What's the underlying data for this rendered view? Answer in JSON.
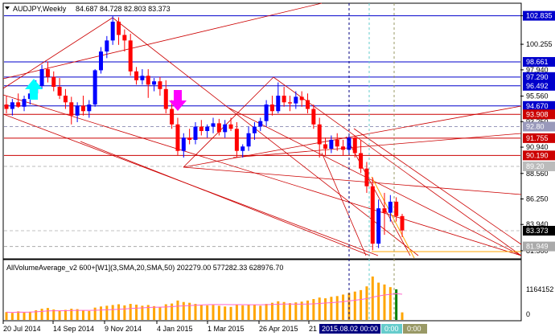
{
  "header": {
    "symbol_timeframe": "AUDJPY,Weekly",
    "ohlc": "84.687 84.728 82.803 83.373"
  },
  "indicator": {
    "label": "AllVolumeAverage_v2 600+[W1](3,SMA,20,SMA,50) 202279.00 577282.33 628976.70"
  },
  "time_axis": {
    "labels": [
      "20 Jul 2014",
      "14 Sep 2014",
      "9 Nov 2014",
      "4 Jan 2015",
      "1 Mar 2015",
      "26 Apr 2015",
      "21"
    ],
    "cursor_label": "2015.08.02 00:00",
    "cursor_label_2": "0:00",
    "cursor_label_3": "0:00"
  },
  "price_axis": {
    "ticks": [
      "102.835",
      "100.255",
      "97.940",
      "95.560",
      "93.250",
      "90.940",
      "88.560",
      "86.250",
      "83.940",
      "81.560"
    ],
    "highlights": [
      {
        "label": "102.835",
        "color": "#0000cc"
      },
      {
        "label": "98.661",
        "color": "#0000cc"
      },
      {
        "label": "97.290",
        "color": "#0000cc"
      },
      {
        "label": "96.492",
        "color": "#0000cc"
      },
      {
        "label": "94.670",
        "color": "#0000cc"
      },
      {
        "label": "93.908",
        "color": "#cc0000"
      },
      {
        "label": "92.80",
        "color": "#9999bb"
      },
      {
        "label": "91.755",
        "color": "#cc0000"
      },
      {
        "label": "90.190",
        "color": "#cc0000"
      },
      {
        "label": "89.20",
        "color": "#bbbbbb"
      },
      {
        "label": "83.373",
        "color": "#000000"
      },
      {
        "label": "81.949",
        "color": "#aaaaaa"
      }
    ]
  },
  "volume_axis": {
    "ticks": [
      "1164152",
      "0"
    ]
  },
  "colors": {
    "bull": "#0000ff",
    "bear": "#ff0000",
    "trendline": "#cc0000",
    "level_blue": "#0000cc",
    "level_red": "#cc0000",
    "arrow_up": "#00ffff",
    "arrow_down": "#ff00ff",
    "volume_bar": "#ffa500"
  },
  "chart_data": {
    "type": "candlestick",
    "price_range": [
      80.9,
      103.9
    ],
    "candles": [
      {
        "o": 94.8,
        "h": 95.6,
        "l": 94.0,
        "c": 94.4
      },
      {
        "o": 94.4,
        "h": 95.3,
        "l": 93.8,
        "c": 95.0
      },
      {
        "o": 95.0,
        "h": 95.8,
        "l": 94.5,
        "c": 94.6
      },
      {
        "o": 94.6,
        "h": 95.6,
        "l": 94.2,
        "c": 95.3
      },
      {
        "o": 95.3,
        "h": 96.6,
        "l": 94.8,
        "c": 95.8
      },
      {
        "o": 95.8,
        "h": 97.0,
        "l": 95.4,
        "c": 96.5
      },
      {
        "o": 96.5,
        "h": 98.4,
        "l": 96.2,
        "c": 98.0
      },
      {
        "o": 98.0,
        "h": 98.7,
        "l": 96.8,
        "c": 97.3
      },
      {
        "o": 97.3,
        "h": 97.8,
        "l": 96.0,
        "c": 96.4
      },
      {
        "o": 96.4,
        "h": 97.2,
        "l": 95.3,
        "c": 95.6
      },
      {
        "o": 95.6,
        "h": 96.2,
        "l": 94.4,
        "c": 95.0
      },
      {
        "o": 95.0,
        "h": 95.5,
        "l": 93.0,
        "c": 93.8
      },
      {
        "o": 93.8,
        "h": 95.0,
        "l": 93.2,
        "c": 94.7
      },
      {
        "o": 94.7,
        "h": 95.6,
        "l": 93.8,
        "c": 94.2
      },
      {
        "o": 94.2,
        "h": 95.2,
        "l": 93.6,
        "c": 94.8
      },
      {
        "o": 94.8,
        "h": 98.0,
        "l": 94.6,
        "c": 97.9
      },
      {
        "o": 97.9,
        "h": 100.0,
        "l": 97.6,
        "c": 99.6
      },
      {
        "o": 99.6,
        "h": 101.0,
        "l": 99.0,
        "c": 100.6
      },
      {
        "o": 100.6,
        "h": 102.8,
        "l": 100.2,
        "c": 102.3
      },
      {
        "o": 102.3,
        "h": 102.7,
        "l": 100.2,
        "c": 101.1
      },
      {
        "o": 101.1,
        "h": 101.6,
        "l": 99.6,
        "c": 100.6
      },
      {
        "o": 100.6,
        "h": 101.2,
        "l": 97.4,
        "c": 97.8
      },
      {
        "o": 97.8,
        "h": 98.2,
        "l": 96.6,
        "c": 97.0
      },
      {
        "o": 97.0,
        "h": 98.0,
        "l": 96.6,
        "c": 97.4
      },
      {
        "o": 97.4,
        "h": 98.0,
        "l": 95.4,
        "c": 96.6
      },
      {
        "o": 96.6,
        "h": 97.2,
        "l": 96.0,
        "c": 96.9
      },
      {
        "o": 96.9,
        "h": 97.3,
        "l": 95.6,
        "c": 96.2
      },
      {
        "o": 96.2,
        "h": 97.0,
        "l": 94.0,
        "c": 94.4
      },
      {
        "o": 94.4,
        "h": 95.2,
        "l": 92.6,
        "c": 93.0
      },
      {
        "o": 93.0,
        "h": 93.6,
        "l": 90.2,
        "c": 90.6
      },
      {
        "o": 90.6,
        "h": 92.2,
        "l": 90.0,
        "c": 91.8
      },
      {
        "o": 91.8,
        "h": 92.6,
        "l": 91.2,
        "c": 91.6
      },
      {
        "o": 91.6,
        "h": 93.2,
        "l": 91.2,
        "c": 92.8
      },
      {
        "o": 92.8,
        "h": 93.4,
        "l": 92.0,
        "c": 92.4
      },
      {
        "o": 92.4,
        "h": 93.0,
        "l": 91.8,
        "c": 92.8
      },
      {
        "o": 92.8,
        "h": 93.6,
        "l": 92.2,
        "c": 93.1
      },
      {
        "o": 93.1,
        "h": 93.5,
        "l": 92.0,
        "c": 92.3
      },
      {
        "o": 92.3,
        "h": 93.4,
        "l": 91.8,
        "c": 93.0
      },
      {
        "o": 93.0,
        "h": 93.6,
        "l": 92.4,
        "c": 92.6
      },
      {
        "o": 92.6,
        "h": 93.2,
        "l": 90.0,
        "c": 90.6
      },
      {
        "o": 90.6,
        "h": 91.2,
        "l": 90.0,
        "c": 91.0
      },
      {
        "o": 91.0,
        "h": 92.8,
        "l": 90.6,
        "c": 92.2
      },
      {
        "o": 92.2,
        "h": 93.2,
        "l": 91.6,
        "c": 92.8
      },
      {
        "o": 92.8,
        "h": 93.6,
        "l": 92.4,
        "c": 93.3
      },
      {
        "o": 93.3,
        "h": 95.2,
        "l": 92.8,
        "c": 94.8
      },
      {
        "o": 94.8,
        "h": 95.6,
        "l": 93.8,
        "c": 94.2
      },
      {
        "o": 94.2,
        "h": 96.8,
        "l": 94.0,
        "c": 95.6
      },
      {
        "o": 95.6,
        "h": 96.4,
        "l": 94.6,
        "c": 95.0
      },
      {
        "o": 95.0,
        "h": 95.6,
        "l": 94.2,
        "c": 94.9
      },
      {
        "o": 94.9,
        "h": 96.0,
        "l": 94.4,
        "c": 95.5
      },
      {
        "o": 95.5,
        "h": 96.0,
        "l": 94.6,
        "c": 95.2
      },
      {
        "o": 95.2,
        "h": 95.8,
        "l": 94.0,
        "c": 94.4
      },
      {
        "o": 94.4,
        "h": 94.8,
        "l": 92.6,
        "c": 93.0
      },
      {
        "o": 93.0,
        "h": 93.6,
        "l": 90.0,
        "c": 91.2
      },
      {
        "o": 91.2,
        "h": 91.8,
        "l": 90.2,
        "c": 90.8
      },
      {
        "o": 90.8,
        "h": 92.0,
        "l": 90.4,
        "c": 91.6
      },
      {
        "o": 91.6,
        "h": 92.2,
        "l": 90.6,
        "c": 91.0
      },
      {
        "o": 91.0,
        "h": 91.6,
        "l": 90.2,
        "c": 90.7
      },
      {
        "o": 90.7,
        "h": 92.0,
        "l": 90.4,
        "c": 91.8
      },
      {
        "o": 91.8,
        "h": 92.0,
        "l": 90.0,
        "c": 90.4
      },
      {
        "o": 90.4,
        "h": 91.6,
        "l": 88.6,
        "c": 89.0
      },
      {
        "o": 89.0,
        "h": 89.6,
        "l": 86.8,
        "c": 87.4
      },
      {
        "o": 87.4,
        "h": 88.2,
        "l": 81.6,
        "c": 82.2
      },
      {
        "o": 82.2,
        "h": 86.2,
        "l": 81.8,
        "c": 85.4
      },
      {
        "o": 85.4,
        "h": 86.8,
        "l": 83.0,
        "c": 85.0
      },
      {
        "o": 85.0,
        "h": 86.6,
        "l": 84.2,
        "c": 86.0
      },
      {
        "o": 86.0,
        "h": 86.4,
        "l": 84.2,
        "c": 84.7
      },
      {
        "o": 84.7,
        "h": 84.9,
        "l": 82.8,
        "c": 83.4
      }
    ],
    "volume": [
      210000,
      190000,
      230000,
      200000,
      220000,
      260000,
      300000,
      320000,
      280000,
      250000,
      270000,
      300000,
      290000,
      260000,
      240000,
      330000,
      360000,
      380000,
      400000,
      420000,
      390000,
      430000,
      410000,
      380000,
      400000,
      370000,
      350000,
      420000,
      440000,
      520000,
      480000,
      460000,
      430000,
      410000,
      390000,
      400000,
      380000,
      360000,
      350000,
      420000,
      390000,
      400000,
      410000,
      380000,
      430000,
      460000,
      500000,
      480000,
      450000,
      470000,
      490000,
      520000,
      560000,
      600000,
      580000,
      620000,
      640000,
      680000,
      720000,
      760000,
      800000,
      900000,
      1164152,
      1000000,
      950000,
      880000,
      820000,
      202279
    ],
    "volume_range": [
      0,
      1164152
    ]
  }
}
